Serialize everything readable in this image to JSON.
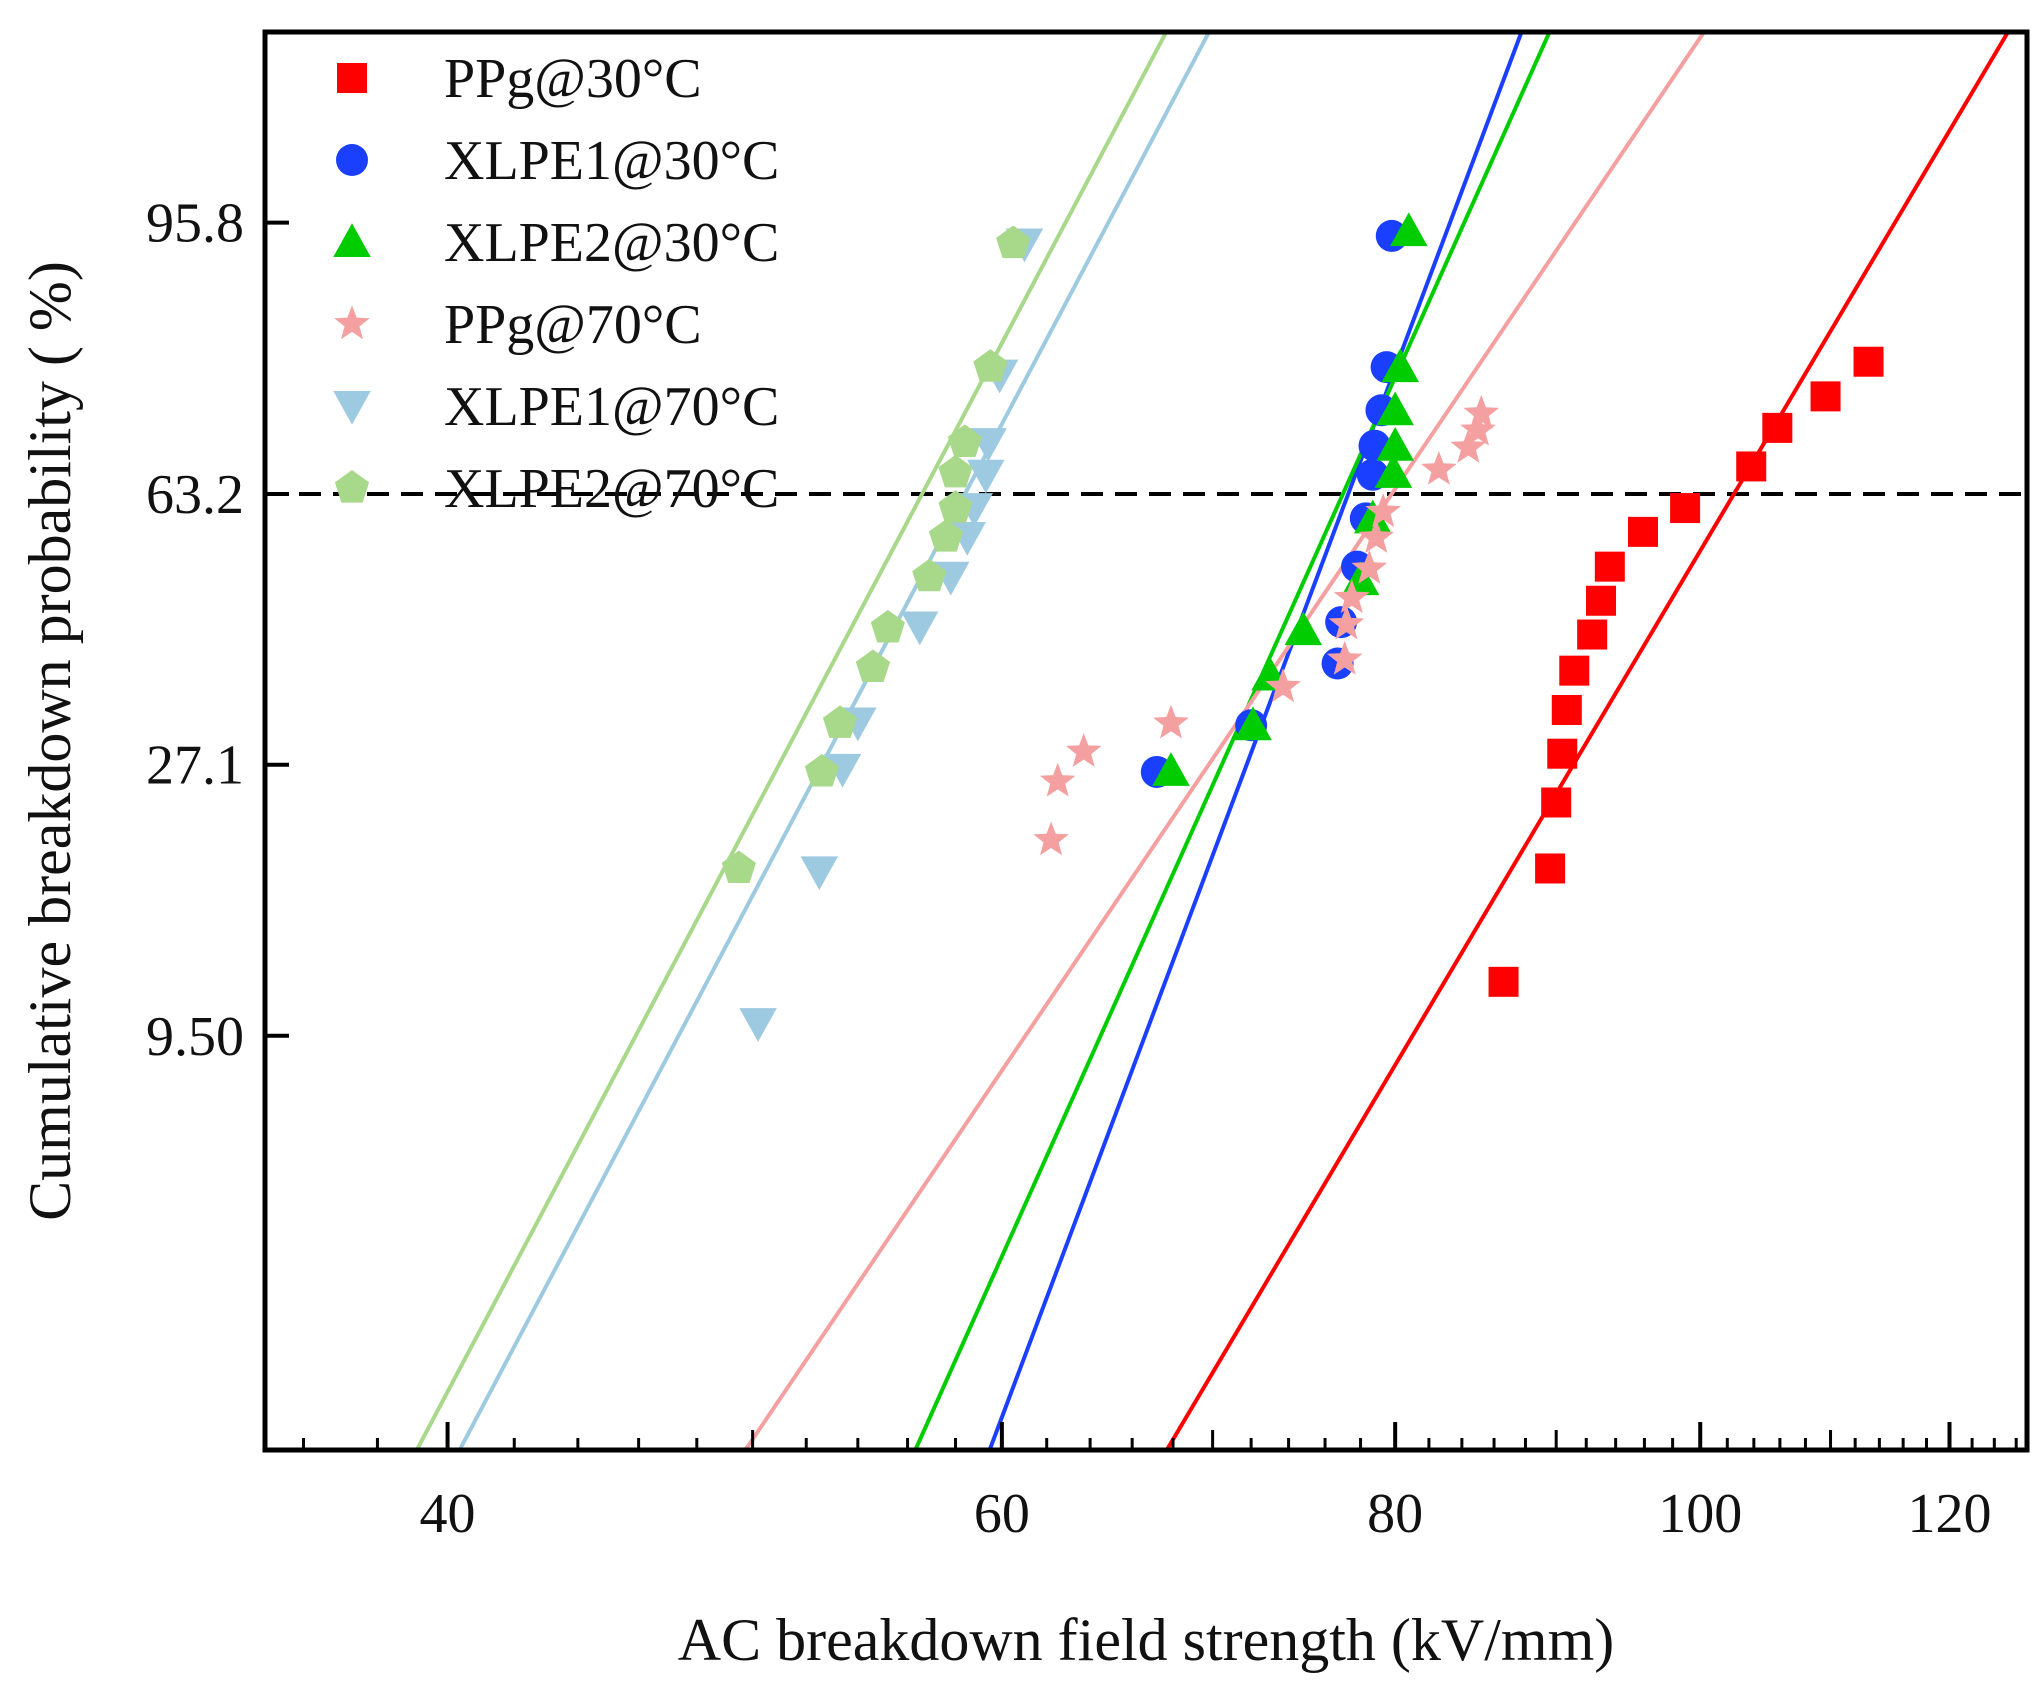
{
  "chart_data": {
    "type": "scatter",
    "title": "",
    "xlabel": "AC breakdown field strength (kV/mm)",
    "ylabel": "Cumulative breakdown probability ( %)",
    "xscale": "log",
    "yscale": "weibull",
    "xlim": [
      35,
      127
    ],
    "ylim": [
      1.7,
      99.92
    ],
    "xticks": [
      40,
      60,
      80,
      100,
      120
    ],
    "xtick_labels": [
      "40",
      "60",
      "80",
      "100",
      "120"
    ],
    "yticks": [
      9.5,
      27.1,
      63.2,
      95.8
    ],
    "ytick_labels": [
      "9.50",
      "27.1",
      "63.2",
      "95.8"
    ],
    "reference_line": {
      "y": 63.2,
      "style": "dashed",
      "color": "#000000"
    },
    "legend_position": "top-left",
    "series": [
      {
        "name": "PPg@30°C",
        "marker": "square",
        "color": "#ff0000",
        "x": [
          86.6,
          89.6,
          90.0,
          90.4,
          90.7,
          91.2,
          92.4,
          93.0,
          93.6,
          95.9,
          98.9,
          103.8,
          105.8,
          109.6,
          113.1
        ],
        "y": [
          11.8,
          18.4,
          23.6,
          28.2,
          32.9,
          37.6,
          42.3,
          47.0,
          52.0,
          57.3,
          61.0,
          67.5,
          73.4,
          78.0,
          82.7
        ],
        "fit": {
          "eta": 102.5,
          "beta": 9.8
        }
      },
      {
        "name": "XLPE1@30°C",
        "marker": "circle",
        "color": "#1a3fff",
        "x": [
          67.2,
          72.0,
          76.7,
          76.9,
          77.8,
          78.3,
          78.7,
          78.8,
          79.2,
          79.5,
          79.8
        ],
        "y": [
          26.4,
          31.2,
          38.5,
          44.0,
          52.0,
          59.4,
          66.2,
          70.7,
          76.0,
          82.0,
          95.0
        ],
        "fit": {
          "eta": 77.3,
          "beta": 15.5
        }
      },
      {
        "name": "XLPE2@30°C",
        "marker": "triangle-up",
        "color": "#00cc00",
        "x": [
          67.9,
          72.1,
          73.0,
          74.8,
          78.0,
          78.7,
          79.9,
          80.0,
          80.0,
          80.3,
          80.8
        ],
        "y": [
          26.5,
          31.2,
          37.0,
          42.9,
          50.0,
          59.4,
          66.5,
          70.7,
          76.0,
          82.0,
          95.3
        ],
        "fit": {
          "eta": 77.0,
          "beta": 13.0
        }
      },
      {
        "name": "PPg@70°C",
        "marker": "star",
        "color": "#f4a0a0",
        "x": [
          62.2,
          62.5,
          63.7,
          67.9,
          73.7,
          77.1,
          77.2,
          77.5,
          78.5,
          78.9,
          79.3,
          82.6,
          84.4,
          85.0,
          85.2
        ],
        "y": [
          20.5,
          25.5,
          28.4,
          31.4,
          35.6,
          39.0,
          43.7,
          47.4,
          51.7,
          56.4,
          60.4,
          67.0,
          70.4,
          73.0,
          75.5
        ],
        "fit": {
          "eta": 79.8,
          "beta": 8.6
        }
      },
      {
        "name": "XLPE1@70°C",
        "marker": "triangle-down",
        "color": "#9ecae1",
        "x": [
          50.2,
          52.5,
          53.4,
          54.0,
          56.5,
          57.8,
          58.5,
          58.8,
          59.3,
          59.4,
          59.9,
          61.0
        ],
        "y": [
          10.0,
          18.2,
          26.7,
          31.5,
          43.4,
          50.5,
          56.5,
          61.0,
          66.2,
          71.1,
          81.0,
          94.5
        ],
        "fit": {
          "eta": 58.4,
          "beta": 11.0
        }
      },
      {
        "name": "XLPE2@70°C",
        "marker": "pentagon",
        "color": "#a8d88a",
        "x": [
          49.5,
          52.6,
          53.3,
          54.6,
          55.2,
          56.9,
          57.6,
          58.0,
          58.0,
          58.4,
          59.5,
          60.5
        ],
        "y": [
          18.4,
          26.4,
          31.4,
          38.0,
          43.2,
          50.5,
          56.5,
          61.0,
          66.5,
          71.2,
          82.0,
          94.5
        ],
        "fit": {
          "eta": 56.6,
          "beta": 11.0
        }
      }
    ]
  }
}
